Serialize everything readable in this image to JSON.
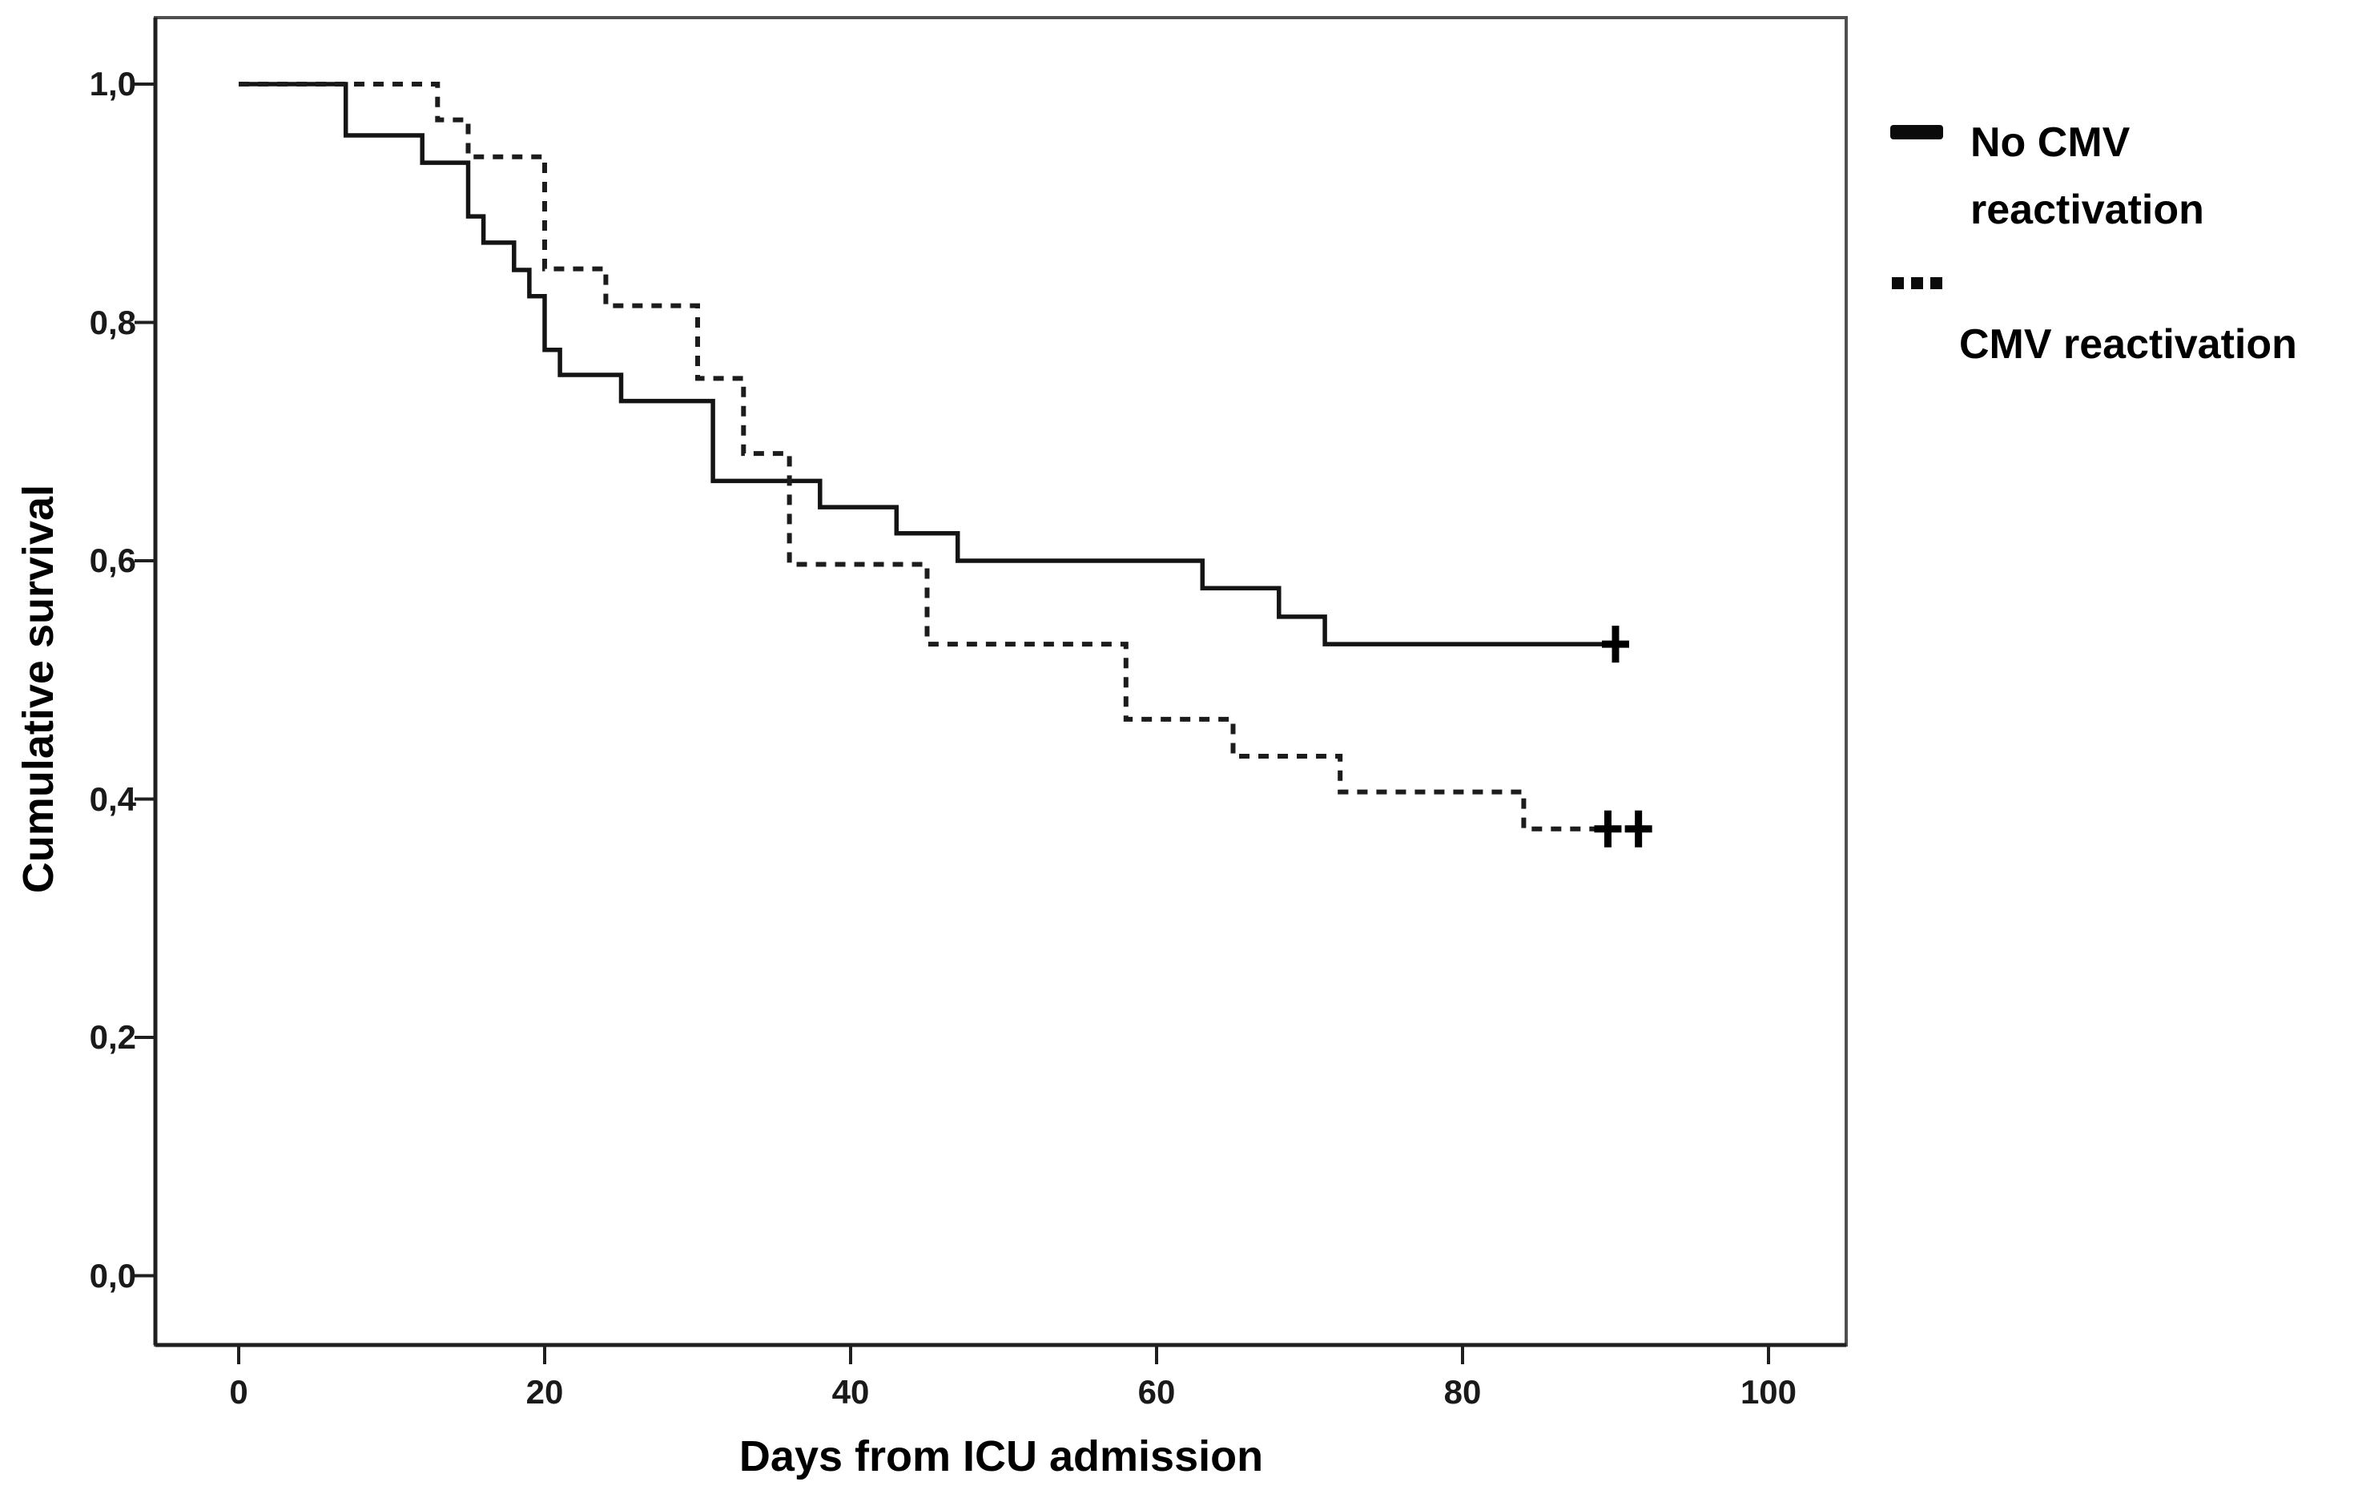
{
  "figure": {
    "background": "#ffffff",
    "frame_color": "#4f4f4f",
    "axis_color": "#1f1f1f"
  },
  "axes": {
    "x_title": "Days from ICU admission",
    "y_title": "Cumulative survival",
    "x_tick_labels": [
      "0",
      "20",
      "40",
      "60",
      "80",
      "100"
    ],
    "x_tick_values": [
      0,
      20,
      40,
      60,
      80,
      100
    ],
    "y_tick_labels": [
      "1,0",
      "0,8",
      "0,6",
      "0,4",
      "0,2",
      "0,0"
    ],
    "y_tick_values": [
      1.0,
      0.8,
      0.6,
      0.4,
      0.2,
      0.0
    ]
  },
  "legend": {
    "entries": [
      {
        "label": "No CMV reactivation",
        "label_lines": "No CMV\nreactivation",
        "style": "solid"
      },
      {
        "label": "CMV reactivation",
        "label_lines": "CMV reactivation",
        "style": "dotted"
      }
    ]
  },
  "chart_data": {
    "type": "line",
    "subtype": "kaplan-meier-step",
    "title": "",
    "xlabel": "Days from ICU admission",
    "ylabel": "Cumulative survival",
    "xlim": [
      -5.5,
      105.2
    ],
    "ylim": [
      -0.058,
      1.056
    ],
    "grid": false,
    "legend_position": "right-top-outside",
    "decimal_separator": ",",
    "series": [
      {
        "name": "No CMV reactivation",
        "line_style": "solid",
        "color": "#141414",
        "start": [
          0,
          1.0
        ],
        "steps": [
          [
            7,
            0.957
          ],
          [
            12,
            0.934
          ],
          [
            15,
            0.889
          ],
          [
            16,
            0.867
          ],
          [
            18,
            0.844
          ],
          [
            19,
            0.822
          ],
          [
            20,
            0.777
          ],
          [
            21,
            0.756
          ],
          [
            25,
            0.734
          ],
          [
            31,
            0.667
          ],
          [
            38,
            0.645
          ],
          [
            43,
            0.623
          ],
          [
            47,
            0.6
          ],
          [
            63,
            0.577
          ],
          [
            68,
            0.553
          ],
          [
            71,
            0.53
          ]
        ],
        "end_day": 90,
        "censored": [
          [
            90,
            0.53
          ]
        ]
      },
      {
        "name": "CMV reactivation",
        "line_style": "dotted",
        "color": "#1c1c1c",
        "start": [
          0,
          1.0
        ],
        "steps": [
          [
            13,
            0.97
          ],
          [
            15,
            0.939
          ],
          [
            20,
            0.845
          ],
          [
            24,
            0.814
          ],
          [
            30,
            0.753
          ],
          [
            33,
            0.69
          ],
          [
            36,
            0.597
          ],
          [
            45,
            0.53
          ],
          [
            58,
            0.467
          ],
          [
            65,
            0.436
          ],
          [
            72,
            0.406
          ],
          [
            84,
            0.375
          ]
        ],
        "end_day": 92,
        "censored": [
          [
            89.5,
            0.375
          ],
          [
            91.5,
            0.375
          ]
        ]
      }
    ]
  }
}
